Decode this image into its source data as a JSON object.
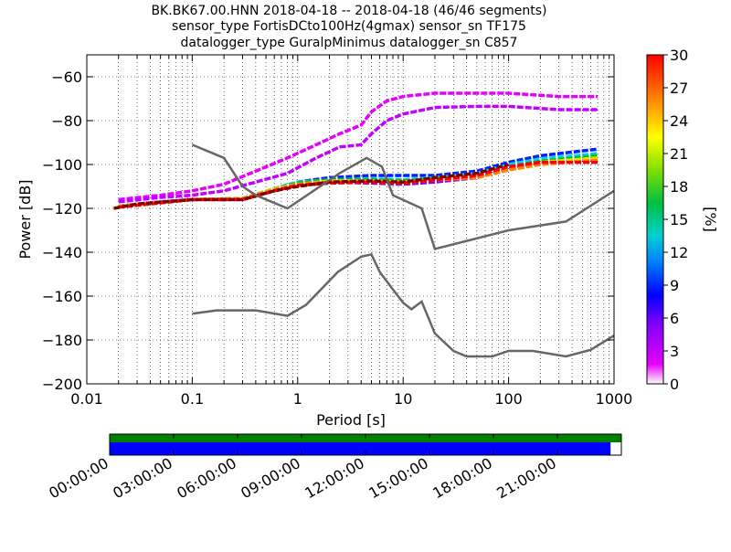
{
  "title_lines": [
    "BK.BK67.00.HNN   2018-04-18 -- 2018-04-18  (46/46 segments)",
    "sensor_type FortisDCto100Hz(4gmax) sensor_sn TF175",
    "datalogger_type GuralpMinimus datalogger_sn C857"
  ],
  "chart_data": {
    "type": "heatmap",
    "xlabel": "Period [s]",
    "ylabel": "Power [dB]",
    "x_scale": "log",
    "xlim": [
      0.01,
      1000
    ],
    "ylim": [
      -200,
      -50
    ],
    "x_ticks": [
      0.01,
      0.1,
      1,
      10,
      100,
      1000
    ],
    "x_tick_labels": [
      "0.01",
      "0.1",
      "1",
      "10",
      "100",
      "1000"
    ],
    "y_ticks": [
      -200,
      -180,
      -160,
      -140,
      -120,
      -100,
      -80,
      -60
    ],
    "y_tick_labels": [
      "−200",
      "−180",
      "−160",
      "−140",
      "−120",
      "−100",
      "−80",
      "−60"
    ],
    "grid": true,
    "colorbar": {
      "label": "[%]",
      "range": [
        0,
        30
      ],
      "ticks": [
        0,
        3,
        6,
        9,
        12,
        15,
        18,
        21,
        24,
        27,
        30
      ],
      "tick_labels": [
        "0",
        "3",
        "6",
        "9",
        "12",
        "15",
        "18",
        "21",
        "24",
        "27",
        "30"
      ]
    },
    "noise_models": [
      {
        "points": [
          [
            0.1,
            -91
          ],
          [
            0.2,
            -97
          ],
          [
            0.3,
            -110
          ],
          [
            0.4,
            -114
          ],
          [
            0.8,
            -120
          ],
          [
            2.5,
            -104
          ],
          [
            4.5,
            -97
          ],
          [
            6.3,
            -101
          ],
          [
            8,
            -114
          ],
          [
            15,
            -120
          ],
          [
            20,
            -138.5
          ],
          [
            100,
            -130
          ],
          [
            350,
            -126
          ],
          [
            1000,
            -112
          ]
        ]
      },
      {
        "points": [
          [
            0.1,
            -168
          ],
          [
            0.17,
            -166.5
          ],
          [
            0.4,
            -166.5
          ],
          [
            0.8,
            -169
          ],
          [
            1.2,
            -164
          ],
          [
            2.4,
            -149
          ],
          [
            4,
            -142
          ],
          [
            5,
            -141
          ],
          [
            6,
            -149
          ],
          [
            8,
            -157
          ],
          [
            10,
            -163
          ],
          [
            12,
            -166
          ],
          [
            15,
            -162.5
          ],
          [
            20,
            -177
          ],
          [
            30,
            -185
          ],
          [
            40,
            -187.5
          ],
          [
            70,
            -187.5
          ],
          [
            100,
            -185
          ],
          [
            170,
            -185
          ],
          [
            350,
            -187.5
          ],
          [
            600,
            -184.5
          ],
          [
            1000,
            -178
          ]
        ]
      }
    ],
    "probability_bands": [
      {
        "name": "upper envelope",
        "color": "#e600ff",
        "points": [
          [
            0.02,
            -116
          ],
          [
            0.05,
            -114
          ],
          [
            0.1,
            -112
          ],
          [
            0.2,
            -109
          ],
          [
            0.4,
            -103
          ],
          [
            0.8,
            -97
          ],
          [
            1.5,
            -91
          ],
          [
            2.5,
            -86
          ],
          [
            4,
            -82
          ],
          [
            5,
            -76
          ],
          [
            7,
            -71
          ],
          [
            10,
            -69
          ],
          [
            20,
            -67.5
          ],
          [
            50,
            -67.5
          ],
          [
            100,
            -67.5
          ],
          [
            300,
            -69
          ],
          [
            700,
            -69
          ]
        ]
      },
      {
        "name": "second envelope",
        "color": "#c400ff",
        "points": [
          [
            0.02,
            -117
          ],
          [
            0.05,
            -115
          ],
          [
            0.1,
            -114
          ],
          [
            0.2,
            -112
          ],
          [
            0.4,
            -108
          ],
          [
            0.8,
            -104
          ],
          [
            1.5,
            -97
          ],
          [
            2.5,
            -92
          ],
          [
            4,
            -91
          ],
          [
            5,
            -86
          ],
          [
            7,
            -80
          ],
          [
            10,
            -77
          ],
          [
            20,
            -74
          ],
          [
            50,
            -73.5
          ],
          [
            100,
            -73.5
          ],
          [
            300,
            -75
          ],
          [
            700,
            -75
          ]
        ]
      },
      {
        "name": "lower envelope",
        "color": "#8000ff",
        "points": [
          [
            0.02,
            -119
          ],
          [
            0.05,
            -117
          ],
          [
            0.1,
            -116
          ],
          [
            0.3,
            -116
          ],
          [
            0.6,
            -112
          ],
          [
            1,
            -109
          ],
          [
            2,
            -108
          ],
          [
            5,
            -108.5
          ],
          [
            10,
            -109
          ],
          [
            20,
            -108
          ],
          [
            50,
            -106
          ],
          [
            100,
            -102
          ],
          [
            200,
            -99
          ],
          [
            700,
            -98
          ]
        ]
      },
      {
        "name": "blue band",
        "color": "#0020ff",
        "points": [
          [
            0.02,
            -119
          ],
          [
            0.1,
            -116
          ],
          [
            0.3,
            -115.5
          ],
          [
            0.6,
            -111
          ],
          [
            1,
            -108
          ],
          [
            2,
            -106
          ],
          [
            5,
            -105
          ],
          [
            10,
            -105
          ],
          [
            20,
            -105
          ],
          [
            50,
            -103
          ],
          [
            100,
            -99
          ],
          [
            200,
            -96
          ],
          [
            700,
            -93
          ]
        ]
      },
      {
        "name": "cyan band",
        "color": "#00d0ff",
        "points": [
          [
            0.02,
            -119
          ],
          [
            0.1,
            -116
          ],
          [
            0.3,
            -115.5
          ],
          [
            0.6,
            -111
          ],
          [
            1,
            -108
          ],
          [
            2,
            -107
          ],
          [
            5,
            -106.5
          ],
          [
            10,
            -107
          ],
          [
            20,
            -106
          ],
          [
            50,
            -104
          ],
          [
            100,
            -100
          ],
          [
            200,
            -97.5
          ],
          [
            700,
            -95
          ]
        ]
      },
      {
        "name": "green band",
        "color": "#00c000",
        "points": [
          [
            0.02,
            -119
          ],
          [
            0.1,
            -116
          ],
          [
            0.3,
            -115.5
          ],
          [
            0.6,
            -111
          ],
          [
            1,
            -108.5
          ],
          [
            2,
            -107
          ],
          [
            5,
            -107
          ],
          [
            10,
            -107.5
          ],
          [
            20,
            -106.5
          ],
          [
            50,
            -105
          ],
          [
            100,
            -101
          ],
          [
            200,
            -98.5
          ],
          [
            700,
            -96
          ]
        ]
      },
      {
        "name": "yellow band",
        "color": "#e0e000",
        "points": [
          [
            0.02,
            -119
          ],
          [
            0.1,
            -116
          ],
          [
            0.3,
            -115.5
          ],
          [
            0.6,
            -111
          ],
          [
            1,
            -109
          ],
          [
            2,
            -107.5
          ],
          [
            5,
            -107.5
          ],
          [
            10,
            -108
          ],
          [
            20,
            -107
          ],
          [
            50,
            -105.5
          ],
          [
            100,
            -102
          ],
          [
            200,
            -99
          ],
          [
            700,
            -97
          ]
        ]
      },
      {
        "name": "orange band",
        "color": "#ff8000",
        "points": [
          [
            0.02,
            -119
          ],
          [
            0.1,
            -116
          ],
          [
            0.3,
            -115.5
          ],
          [
            0.6,
            -111.5
          ],
          [
            1,
            -109
          ],
          [
            2,
            -108
          ],
          [
            5,
            -108
          ],
          [
            10,
            -108.5
          ],
          [
            20,
            -107
          ],
          [
            50,
            -106
          ],
          [
            100,
            -102.5
          ],
          [
            200,
            -100
          ],
          [
            700,
            -98
          ]
        ]
      },
      {
        "name": "red core",
        "color": "#ff0000",
        "points": [
          [
            0.02,
            -119.5
          ],
          [
            0.1,
            -116
          ],
          [
            0.3,
            -116
          ],
          [
            0.6,
            -112
          ],
          [
            1,
            -109.5
          ],
          [
            2,
            -108.5
          ],
          [
            5,
            -108
          ],
          [
            10,
            -108.5
          ],
          [
            20,
            -107
          ],
          [
            50,
            -105
          ],
          [
            100,
            -101
          ],
          [
            200,
            -99
          ],
          [
            700,
            -99
          ]
        ]
      },
      {
        "name": "dark red core",
        "color": "#800000",
        "points": [
          [
            0.018,
            -120
          ],
          [
            0.03,
            -118
          ],
          [
            0.1,
            -116
          ],
          [
            0.3,
            -116
          ],
          [
            0.6,
            -112
          ],
          [
            1,
            -110
          ],
          [
            2,
            -108
          ],
          [
            5,
            -107.5
          ],
          [
            10,
            -108
          ],
          [
            20,
            -106
          ],
          [
            50,
            -104
          ],
          [
            100,
            -100
          ]
        ]
      }
    ],
    "timeline": {
      "tick_labels": [
        "00:00:00",
        "03:00:00",
        "06:00:00",
        "09:00:00",
        "12:00:00",
        "15:00:00",
        "18:00:00",
        "21:00:00"
      ],
      "data_coverage_color": "#008000",
      "psd_coverage_color": "#0000ff",
      "data_coverage_fraction": 1.0,
      "psd_coverage_fraction": 0.979
    }
  }
}
